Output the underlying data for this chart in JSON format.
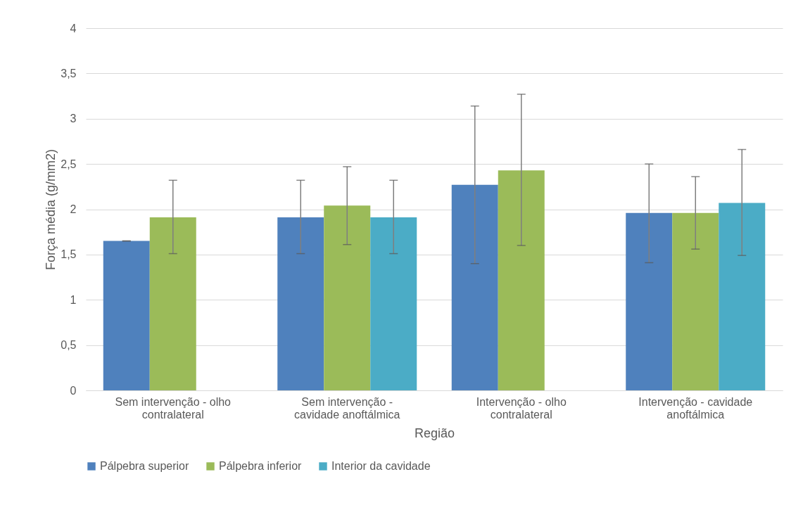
{
  "chart_data": {
    "type": "bar",
    "xlabel": "Região",
    "ylabel": "Força média  (g/mm2)",
    "categories": [
      "Sem intervenção - olho contralateral",
      "Sem intervenção - cavidade anoftálmica",
      "Intervenção - olho contralateral",
      "Intervenção - cavidade anoftálmica"
    ],
    "series": [
      {
        "name": "Pálpebra superior",
        "color": "#4f81bd",
        "values": [
          1.65,
          1.91,
          2.27,
          1.96
        ],
        "errors": [
          [
            1.65,
            1.65
          ],
          [
            1.51,
            2.32
          ],
          [
            1.4,
            3.14
          ],
          [
            1.41,
            2.5
          ]
        ]
      },
      {
        "name": "Pálpebra inferior",
        "color": "#9bbb59",
        "values": [
          1.91,
          2.04,
          2.43,
          1.96
        ],
        "errors": [
          [
            1.51,
            2.32
          ],
          [
            1.61,
            2.47
          ],
          [
            1.6,
            3.27
          ],
          [
            1.56,
            2.36
          ]
        ]
      },
      {
        "name": "Interior da cavidade",
        "color": "#4bacc6",
        "values": [
          null,
          1.91,
          null,
          2.07
        ],
        "errors": [
          null,
          [
            1.51,
            2.32
          ],
          null,
          [
            1.49,
            2.66
          ]
        ]
      }
    ],
    "ylim": [
      0,
      4
    ],
    "yticks": [
      0,
      {
        "value": 0.5,
        "label": "0,5"
      },
      1,
      {
        "value": 1.5,
        "label": "1,5"
      },
      2,
      {
        "value": 2.5,
        "label": "2,5"
      },
      3,
      {
        "value": 3.5,
        "label": "3,5"
      },
      4
    ],
    "grid": "y",
    "legend": "bottom"
  }
}
